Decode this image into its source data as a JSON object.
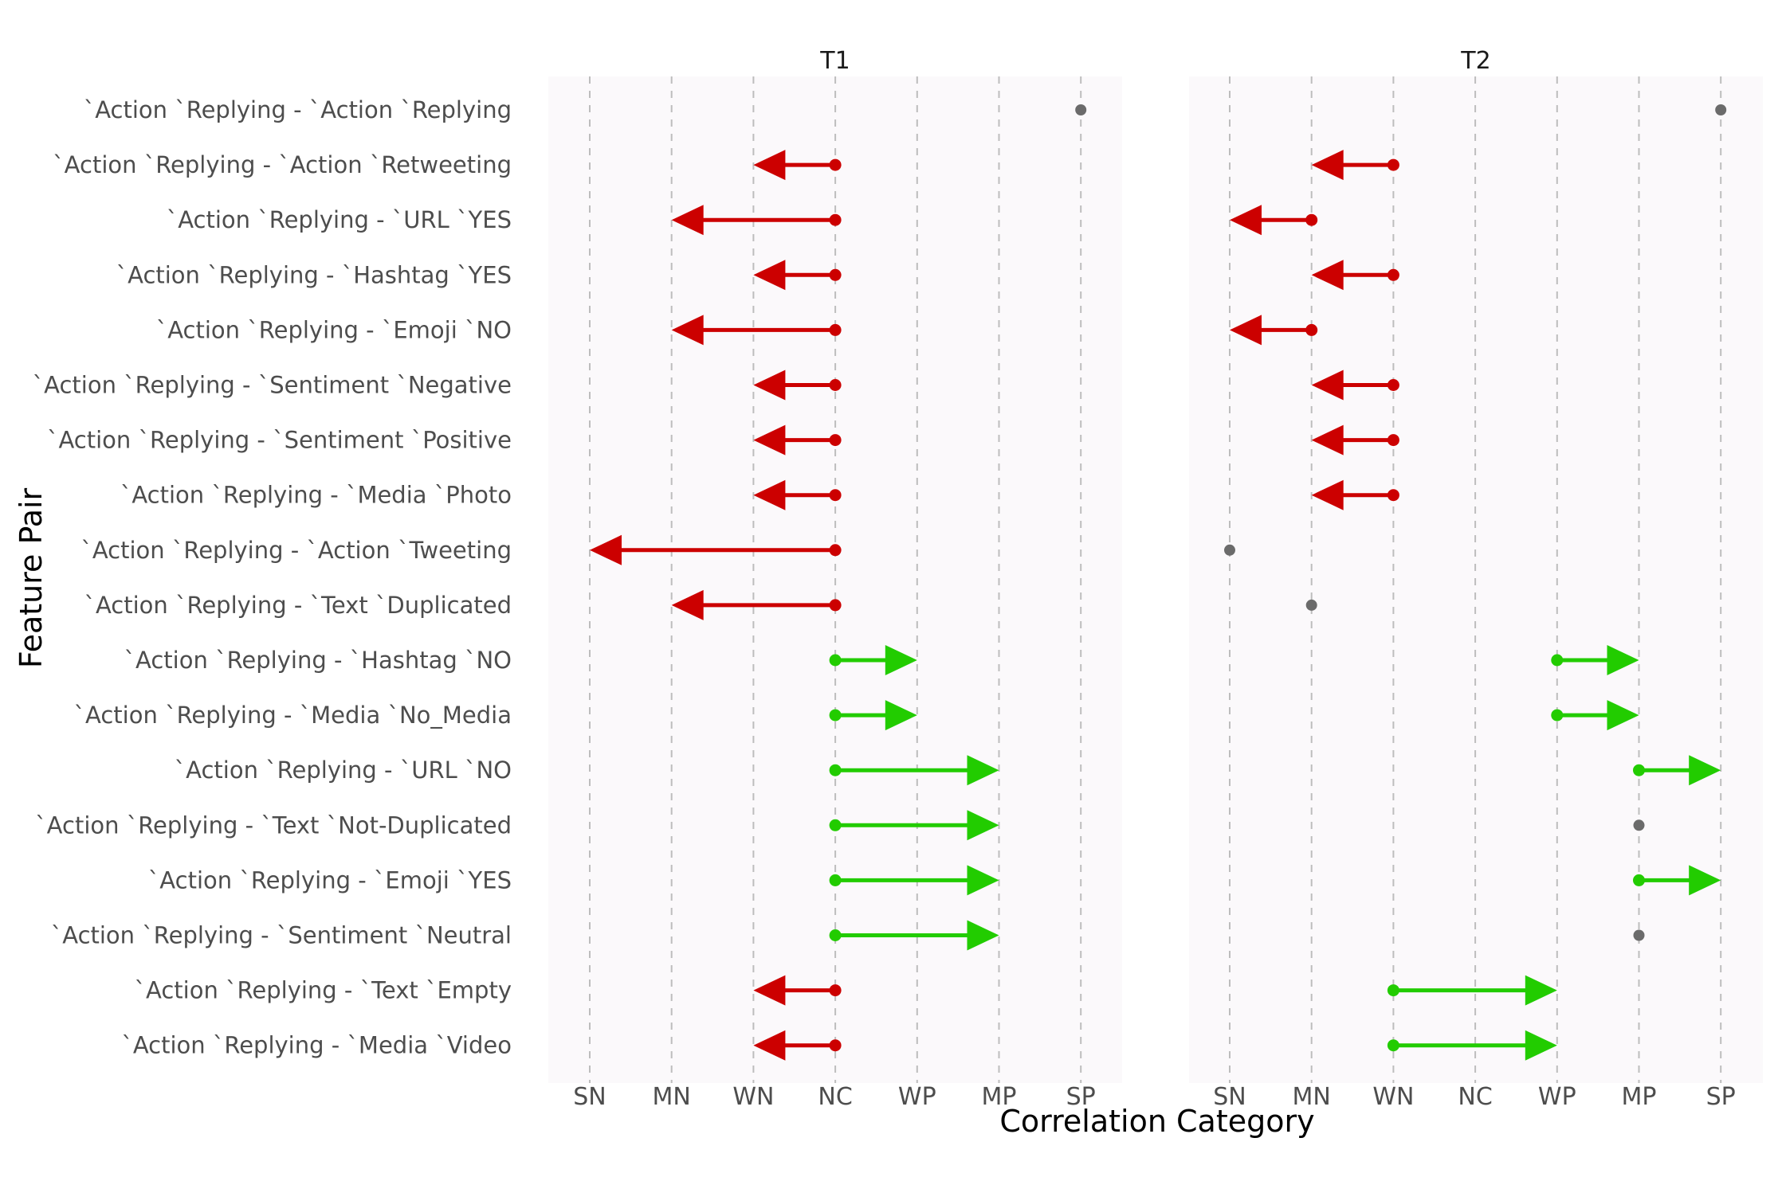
{
  "chart_data": {
    "type": "arrow-dot",
    "xlabel": "Correlation Category",
    "ylabel": "Feature Pair",
    "x_categories": [
      "SN",
      "MN",
      "WN",
      "NC",
      "WP",
      "MP",
      "SP"
    ],
    "rows": [
      "`Action `Replying - `Action `Replying",
      "`Action `Replying - `Action `Retweeting",
      "`Action `Replying - `URL `YES",
      "`Action `Replying - `Hashtag `YES",
      "`Action `Replying - `Emoji `NO",
      "`Action `Replying - `Sentiment `Negative",
      "`Action `Replying - `Sentiment `Positive",
      "`Action `Replying - `Media `Photo",
      "`Action `Replying - `Action `Tweeting",
      "`Action `Replying - `Text `Duplicated",
      "`Action `Replying - `Hashtag `NO",
      "`Action `Replying - `Media `No_Media",
      "`Action `Replying - `URL `NO",
      "`Action `Replying - `Text `Not-Duplicated",
      "`Action `Replying - `Emoji `YES",
      "`Action `Replying - `Sentiment `Neutral",
      "`Action `Replying - `Text `Empty",
      "`Action `Replying - `Media `Video"
    ],
    "colors": {
      "negative": "#cc0000",
      "positive": "#22cc00",
      "unchanged": "#6b6b6b",
      "panel_bg": "#fbf9fb"
    },
    "panels": [
      {
        "title": "T1",
        "items": [
          {
            "from": "SP",
            "to": "SP"
          },
          {
            "from": "NC",
            "to": "WN"
          },
          {
            "from": "NC",
            "to": "MN"
          },
          {
            "from": "NC",
            "to": "WN"
          },
          {
            "from": "NC",
            "to": "MN"
          },
          {
            "from": "NC",
            "to": "WN"
          },
          {
            "from": "NC",
            "to": "WN"
          },
          {
            "from": "NC",
            "to": "WN"
          },
          {
            "from": "NC",
            "to": "SN"
          },
          {
            "from": "NC",
            "to": "MN"
          },
          {
            "from": "NC",
            "to": "WP"
          },
          {
            "from": "NC",
            "to": "WP"
          },
          {
            "from": "NC",
            "to": "MP"
          },
          {
            "from": "NC",
            "to": "MP"
          },
          {
            "from": "NC",
            "to": "MP"
          },
          {
            "from": "NC",
            "to": "MP"
          },
          {
            "from": "NC",
            "to": "WN"
          },
          {
            "from": "NC",
            "to": "WN"
          }
        ]
      },
      {
        "title": "T2",
        "items": [
          {
            "from": "SP",
            "to": "SP"
          },
          {
            "from": "WN",
            "to": "MN"
          },
          {
            "from": "MN",
            "to": "SN"
          },
          {
            "from": "WN",
            "to": "MN"
          },
          {
            "from": "MN",
            "to": "SN"
          },
          {
            "from": "WN",
            "to": "MN"
          },
          {
            "from": "WN",
            "to": "MN"
          },
          {
            "from": "WN",
            "to": "MN"
          },
          {
            "from": "SN",
            "to": "SN"
          },
          {
            "from": "MN",
            "to": "MN"
          },
          {
            "from": "WP",
            "to": "MP"
          },
          {
            "from": "WP",
            "to": "MP"
          },
          {
            "from": "MP",
            "to": "SP"
          },
          {
            "from": "MP",
            "to": "MP"
          },
          {
            "from": "MP",
            "to": "SP"
          },
          {
            "from": "MP",
            "to": "MP"
          },
          {
            "from": "WN",
            "to": "WP"
          },
          {
            "from": "WN",
            "to": "WP"
          }
        ]
      }
    ]
  }
}
